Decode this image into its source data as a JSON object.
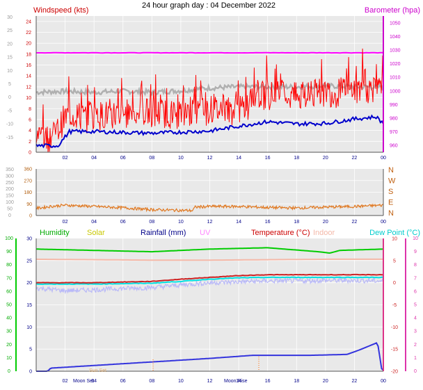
{
  "title": "24 hour graph day : 04 December 2022",
  "x_ticks": [
    "02",
    "04",
    "06",
    "08",
    "10",
    "12",
    "14",
    "16",
    "18",
    "20",
    "22",
    "00"
  ],
  "colors": {
    "plot_bg": "#e9e9e9",
    "grid": "#ffffff",
    "wind": "#ff0000",
    "wind_dark": "#d40000",
    "avg_wind": "#0000cc",
    "baro": "#ff00ff",
    "baro_label": "#cc00cc",
    "gray_series": "#b0b0b0",
    "direction": "#e07820",
    "humidity": "#00cc00",
    "solar": "#c8c800",
    "rain": "#3333dd",
    "uv": "#ff99ff",
    "temperature": "#cc2222",
    "indoor": "#f4b8a8",
    "dew": "#00e0e0",
    "apparent": "#b8b8f8",
    "left_axis_green": "#00aa00",
    "right_axis_pink": "#dd33aa"
  },
  "panel1": {
    "left_label": "Windspeed (kts)",
    "right_label": "Barometer (hpa)",
    "left_ticks": [
      "24",
      "22",
      "20",
      "18",
      "16",
      "14",
      "12",
      "10",
      "8",
      "6",
      "4",
      "2",
      "0"
    ],
    "outer_left_ticks": [
      "30",
      "25",
      "20",
      "15",
      "10",
      "5",
      "0",
      "-5",
      "-10",
      "-15"
    ],
    "right_ticks": [
      "1050",
      "1040",
      "1030",
      "1020",
      "1010",
      "1000",
      "990",
      "980",
      "970",
      "960"
    ]
  },
  "panel2": {
    "left_ticks": [
      "360",
      "270",
      "180",
      "90",
      "0"
    ],
    "outer_left_ticks": [
      "350",
      "300",
      "250",
      "200",
      "150",
      "100",
      "50",
      "0"
    ],
    "right_labels": [
      "N",
      "W",
      "S",
      "E",
      "N"
    ]
  },
  "panel3": {
    "legend": {
      "humidity": "Humidity",
      "solar": "Solar",
      "rainfall": "Rainfall (mm)",
      "uv": "UV",
      "temperature": "Temperature (°C)",
      "indoor": "Indoor",
      "dewpoint": "Dew Point (°C)"
    },
    "rain_ticks": [
      "30",
      "25",
      "20",
      "15",
      "10",
      "5",
      "0"
    ],
    "outer_left_ticks": [
      "100",
      "90",
      "80",
      "70",
      "60",
      "50",
      "40",
      "30",
      "20",
      "10",
      "0"
    ],
    "right_ticks": [
      "10",
      "5",
      "0",
      "-5",
      "-10",
      "-15",
      "-20"
    ],
    "outer_right_ticks": [
      "10",
      "9",
      "8",
      "7",
      "6",
      "5",
      "4",
      "3",
      "2",
      "1",
      "0"
    ],
    "moon_set": "Moon Set",
    "moon_rise": "Moon Rise",
    "sun_set": "Sun Set"
  },
  "chart_data": [
    {
      "type": "line",
      "x_unit": "hour of day (00:00 to 24:00)",
      "series": [
        {
          "name": "Windspeed (kts)",
          "axis": "left",
          "x": [
            0,
            0.7,
            1.2,
            1.5,
            1.9,
            2.3,
            2.9,
            3.5,
            4.0,
            5.0,
            6.0,
            7.0,
            8.0,
            9.0,
            10.0,
            11.0,
            12.0,
            13.0,
            14.0,
            14.6,
            15.0,
            16.0,
            17.0,
            18.0,
            19.0,
            20.0,
            21.0,
            22.0,
            23.0,
            23.9
          ],
          "values": [
            3.0,
            2.6,
            3.0,
            4.0,
            6.0,
            7.0,
            6.8,
            6.2,
            6.5,
            7.0,
            7.0,
            7.3,
            7.2,
            7.1,
            6.8,
            7.2,
            7.7,
            7.8,
            7.5,
            8.4,
            10.0,
            10.5,
            10.5,
            10.1,
            10.5,
            11.0,
            10.8,
            11.5,
            11.6,
            11.0
          ]
        },
        {
          "name": "Barometer (hpa)",
          "axis": "right",
          "x": [
            0,
            4,
            8,
            12,
            16,
            20,
            24
          ],
          "values": [
            1028,
            1028,
            1028,
            1028,
            1028,
            1028,
            1028
          ]
        }
      ],
      "extra_unlabeled_lines": [
        {
          "axis": "left",
          "x": [
            0,
            1.5,
            2.3,
            4.0,
            8.0,
            12.0,
            14.0,
            16.0,
            18.0,
            20.0,
            22.0,
            23.5,
            24.0
          ],
          "values": [
            1.2,
            1.2,
            3.8,
            3.8,
            3.5,
            3.9,
            4.8,
            5.6,
            5.2,
            5.3,
            6.1,
            6.5,
            5.3
          ]
        },
        {
          "axis": "left",
          "x": [
            0,
            2,
            4,
            6,
            8,
            10,
            12,
            14,
            16,
            18,
            20,
            22,
            24
          ],
          "values": [
            11.0,
            11.2,
            11.0,
            11.2,
            11.0,
            11.3,
            11.8,
            12.0,
            12.0,
            12.0,
            12.2,
            12.0,
            12.0
          ]
        }
      ]
    },
    {
      "type": "line",
      "x_unit": "hour of day",
      "series": [
        {
          "name": "",
          "axis": "left",
          "x": [
            0,
            1,
            2,
            3,
            4,
            6,
            8,
            10,
            10.8,
            11.0,
            12,
            14,
            16,
            18,
            20,
            22,
            24
          ],
          "values": [
            55,
            70,
            80,
            75,
            70,
            60,
            45,
            40,
            38,
            65,
            70,
            70,
            62,
            58,
            65,
            70,
            80
          ]
        }
      ]
    },
    {
      "type": "line",
      "x_unit": "hour of day",
      "series": [
        {
          "name": "Humidity",
          "axis": "outer-left",
          "x": [
            0,
            4,
            8,
            10,
            12,
            16,
            19.5,
            20.3,
            21,
            24
          ],
          "values": [
            92,
            91,
            90,
            91,
            92,
            93,
            90,
            89,
            91,
            92
          ]
        },
        {
          "name": "Rainfall (mm)",
          "axis": "left",
          "x": [
            0,
            0.8,
            1.0,
            4.0,
            8.0,
            12.0,
            15.0,
            19.0,
            21.5,
            22.5,
            23.6,
            23.9
          ],
          "values": [
            0,
            0,
            0.7,
            1.3,
            2.1,
            2.9,
            3.6,
            3.6,
            3.8,
            5.0,
            6.5,
            0.2
          ]
        },
        {
          "name": "Temperature (°C)",
          "axis": "right",
          "x": [
            0,
            4,
            8,
            10,
            12,
            14,
            16,
            18,
            20,
            22,
            24
          ],
          "values": [
            0.0,
            0.0,
            0.3,
            0.8,
            1.2,
            1.6,
            1.8,
            1.8,
            1.8,
            1.8,
            1.8
          ]
        },
        {
          "name": "Indoor",
          "axis": "right",
          "x": [
            0,
            4,
            8,
            12,
            16,
            20,
            24
          ],
          "values": [
            5.3,
            5.2,
            5.1,
            5.1,
            5.2,
            5.3,
            5.3
          ]
        },
        {
          "name": "Dew Point (°C)",
          "axis": "right",
          "x": [
            0,
            4,
            8,
            10,
            12,
            14,
            16,
            18,
            20,
            22,
            24
          ],
          "values": [
            -0.3,
            -0.3,
            -0.1,
            0.3,
            0.8,
            1.1,
            1.2,
            1.2,
            1.2,
            1.2,
            1.2
          ]
        }
      ],
      "extra_unlabeled_lines": [
        {
          "axis": "right",
          "x": [
            0,
            2,
            4,
            6,
            8,
            10,
            12,
            14,
            16,
            18,
            20,
            22,
            24
          ],
          "values": [
            -1.2,
            -1.8,
            -1.6,
            -1.3,
            -1.1,
            -0.5,
            0.0,
            0.2,
            0.4,
            0.4,
            0.5,
            0.5,
            0.4
          ]
        }
      ]
    }
  ]
}
